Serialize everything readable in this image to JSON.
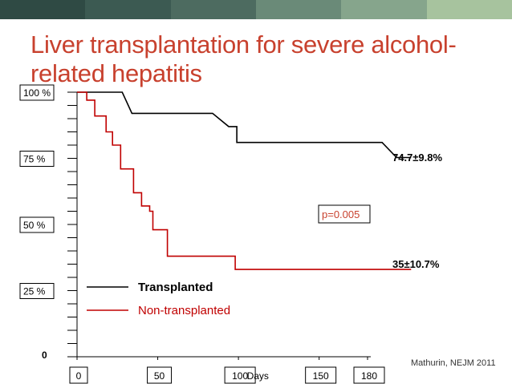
{
  "slide": {
    "title": "Liver transplantation for severe alcohol-related hepatitis",
    "citation": "Mathurin, NEJM 2011",
    "top_bar_colors": [
      "#2f4a44",
      "#3c5a52",
      "#4d6b60",
      "#6a8a78",
      "#86a58c",
      "#a7c39e"
    ]
  },
  "chart_data": {
    "type": "line",
    "subtype": "kaplan-meier",
    "xlabel": "Days",
    "ylabel": "",
    "xlim": [
      0,
      180
    ],
    "ylim": [
      0,
      100
    ],
    "x_ticks": [
      {
        "value": 0,
        "label": "0"
      },
      {
        "value": 50,
        "label": "50"
      },
      {
        "value": 100,
        "label": "100"
      },
      {
        "value": 150,
        "label": "150"
      },
      {
        "value": 180,
        "label": "180"
      }
    ],
    "y_ticks": [
      {
        "value": 100,
        "label": "100 %"
      },
      {
        "value": 75,
        "label": "75 %"
      },
      {
        "value": 50,
        "label": "50 %"
      },
      {
        "value": 25,
        "label": "25 %"
      },
      {
        "value": 0,
        "label": "0"
      }
    ],
    "y_minor_step": 5,
    "series": [
      {
        "name": "Transplanted",
        "color": "#000000",
        "result_label": "74.7±9.8%",
        "steps": [
          [
            0,
            100
          ],
          [
            28,
            100
          ],
          [
            34,
            92
          ],
          [
            84,
            92
          ],
          [
            94,
            87
          ],
          [
            99,
            87
          ],
          [
            99,
            81
          ],
          [
            189,
            81
          ],
          [
            198,
            75.3
          ],
          [
            207,
            75.3
          ]
        ]
      },
      {
        "name": "Non-transplanted",
        "color": "#c00000",
        "result_label": "35±10.7%",
        "steps": [
          [
            0,
            100
          ],
          [
            6,
            100
          ],
          [
            6,
            97
          ],
          [
            11,
            97
          ],
          [
            11,
            91
          ],
          [
            18,
            91
          ],
          [
            18,
            85
          ],
          [
            22,
            85
          ],
          [
            22,
            80
          ],
          [
            27,
            80
          ],
          [
            27,
            71
          ],
          [
            35,
            71
          ],
          [
            35,
            62
          ],
          [
            40,
            62
          ],
          [
            40,
            57
          ],
          [
            45,
            57
          ],
          [
            45,
            55
          ],
          [
            47,
            55
          ],
          [
            47,
            48
          ],
          [
            56,
            48
          ],
          [
            56,
            38
          ],
          [
            98,
            38
          ],
          [
            98,
            33
          ],
          [
            207,
            33
          ]
        ]
      }
    ],
    "annotations": [
      {
        "text": "p=0.005",
        "near": "center-right"
      }
    ],
    "legend": {
      "placement": "bottom-left"
    }
  }
}
